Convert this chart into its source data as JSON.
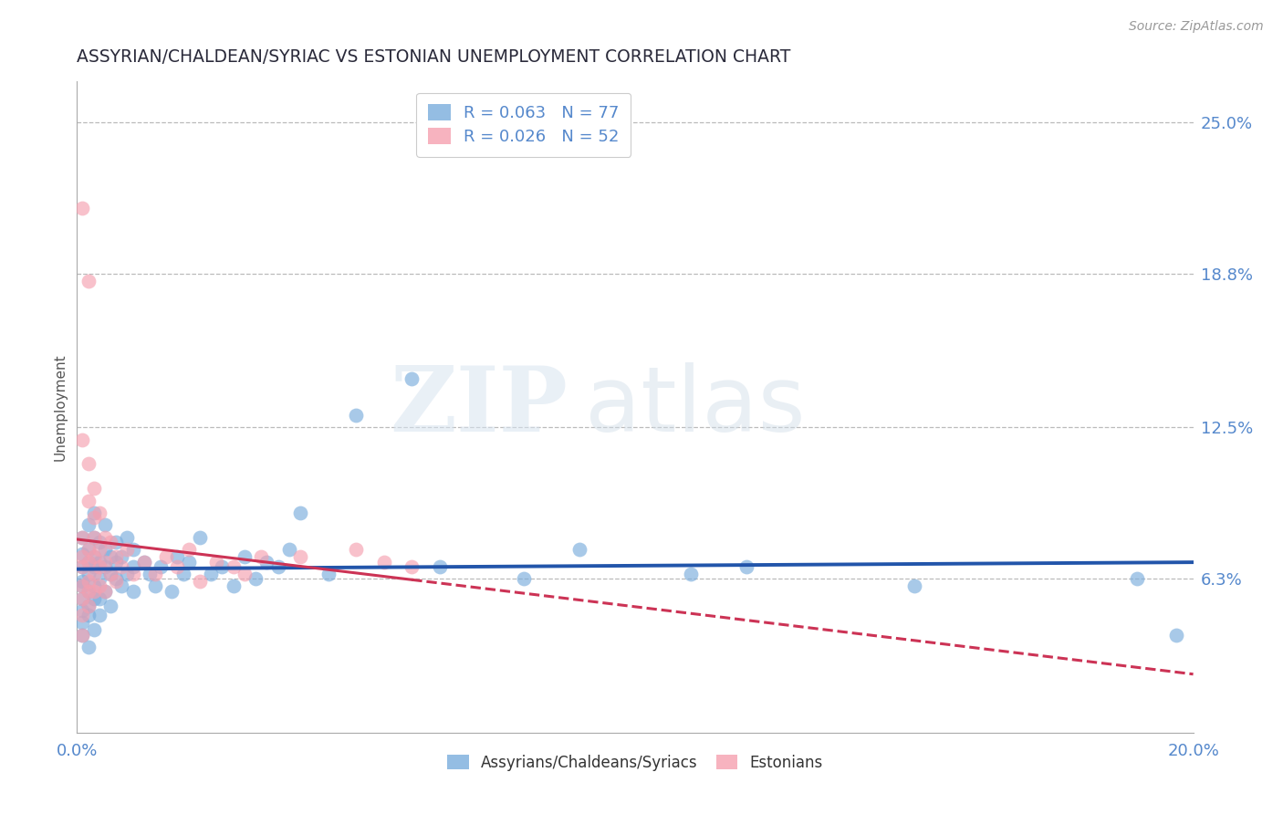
{
  "title": "ASSYRIAN/CHALDEAN/SYRIAC VS ESTONIAN UNEMPLOYMENT CORRELATION CHART",
  "source_text": "Source: ZipAtlas.com",
  "ylabel": "Unemployment",
  "xlim": [
    0.0,
    0.2
  ],
  "ylim": [
    0.0,
    0.2667
  ],
  "ytick_values": [
    0.063,
    0.125,
    0.188,
    0.25
  ],
  "ytick_labels": [
    "6.3%",
    "12.5%",
    "18.8%",
    "25.0%"
  ],
  "grid_color": "#bbbbbb",
  "background_color": "#ffffff",
  "blue_color": "#7aaddc",
  "pink_color": "#f5a0b0",
  "blue_line_color": "#2255aa",
  "pink_line_color": "#cc3355",
  "title_color": "#2a2a3a",
  "axis_label_color": "#5588cc",
  "legend_label1": "Assyrians/Chaldeans/Syriacs",
  "legend_label2": "Estonians",
  "watermark_zip": "ZIP",
  "watermark_atlas": "atlas",
  "blue_scatter_x": [
    0.001,
    0.001,
    0.001,
    0.001,
    0.001,
    0.001,
    0.001,
    0.001,
    0.001,
    0.002,
    0.002,
    0.002,
    0.002,
    0.002,
    0.002,
    0.002,
    0.002,
    0.003,
    0.003,
    0.003,
    0.003,
    0.003,
    0.003,
    0.003,
    0.004,
    0.004,
    0.004,
    0.004,
    0.004,
    0.005,
    0.005,
    0.005,
    0.005,
    0.006,
    0.006,
    0.006,
    0.007,
    0.007,
    0.007,
    0.008,
    0.008,
    0.009,
    0.009,
    0.01,
    0.01,
    0.01,
    0.012,
    0.013,
    0.014,
    0.015,
    0.017,
    0.018,
    0.019,
    0.02,
    0.022,
    0.024,
    0.026,
    0.028,
    0.03,
    0.032,
    0.034,
    0.036,
    0.038,
    0.04,
    0.045,
    0.05,
    0.06,
    0.065,
    0.08,
    0.09,
    0.11,
    0.12,
    0.15,
    0.19,
    0.197
  ],
  "blue_scatter_y": [
    0.055,
    0.062,
    0.068,
    0.073,
    0.05,
    0.08,
    0.045,
    0.06,
    0.04,
    0.058,
    0.065,
    0.07,
    0.075,
    0.052,
    0.048,
    0.085,
    0.035,
    0.06,
    0.068,
    0.072,
    0.055,
    0.08,
    0.042,
    0.09,
    0.063,
    0.07,
    0.055,
    0.078,
    0.048,
    0.068,
    0.058,
    0.075,
    0.085,
    0.065,
    0.072,
    0.052,
    0.07,
    0.063,
    0.078,
    0.06,
    0.072,
    0.065,
    0.08,
    0.068,
    0.058,
    0.075,
    0.07,
    0.065,
    0.06,
    0.068,
    0.058,
    0.072,
    0.065,
    0.07,
    0.08,
    0.065,
    0.068,
    0.06,
    0.072,
    0.063,
    0.07,
    0.068,
    0.075,
    0.09,
    0.065,
    0.13,
    0.145,
    0.068,
    0.063,
    0.075,
    0.065,
    0.068,
    0.06,
    0.063,
    0.04
  ],
  "pink_scatter_x": [
    0.001,
    0.001,
    0.001,
    0.001,
    0.001,
    0.001,
    0.001,
    0.001,
    0.002,
    0.002,
    0.002,
    0.002,
    0.002,
    0.002,
    0.002,
    0.003,
    0.003,
    0.003,
    0.003,
    0.003,
    0.003,
    0.004,
    0.004,
    0.004,
    0.004,
    0.005,
    0.005,
    0.005,
    0.006,
    0.006,
    0.007,
    0.007,
    0.008,
    0.009,
    0.01,
    0.012,
    0.014,
    0.016,
    0.018,
    0.02,
    0.022,
    0.025,
    0.028,
    0.03,
    0.033,
    0.04,
    0.05,
    0.055,
    0.06,
    0.001,
    0.002
  ],
  "pink_scatter_y": [
    0.06,
    0.068,
    0.072,
    0.055,
    0.048,
    0.08,
    0.04,
    0.12,
    0.062,
    0.07,
    0.058,
    0.075,
    0.052,
    0.095,
    0.11,
    0.065,
    0.072,
    0.058,
    0.08,
    0.088,
    0.1,
    0.068,
    0.075,
    0.06,
    0.09,
    0.07,
    0.058,
    0.08,
    0.065,
    0.078,
    0.072,
    0.062,
    0.068,
    0.075,
    0.065,
    0.07,
    0.065,
    0.072,
    0.068,
    0.075,
    0.062,
    0.07,
    0.068,
    0.065,
    0.072,
    0.072,
    0.075,
    0.07,
    0.068,
    0.215,
    0.185
  ]
}
